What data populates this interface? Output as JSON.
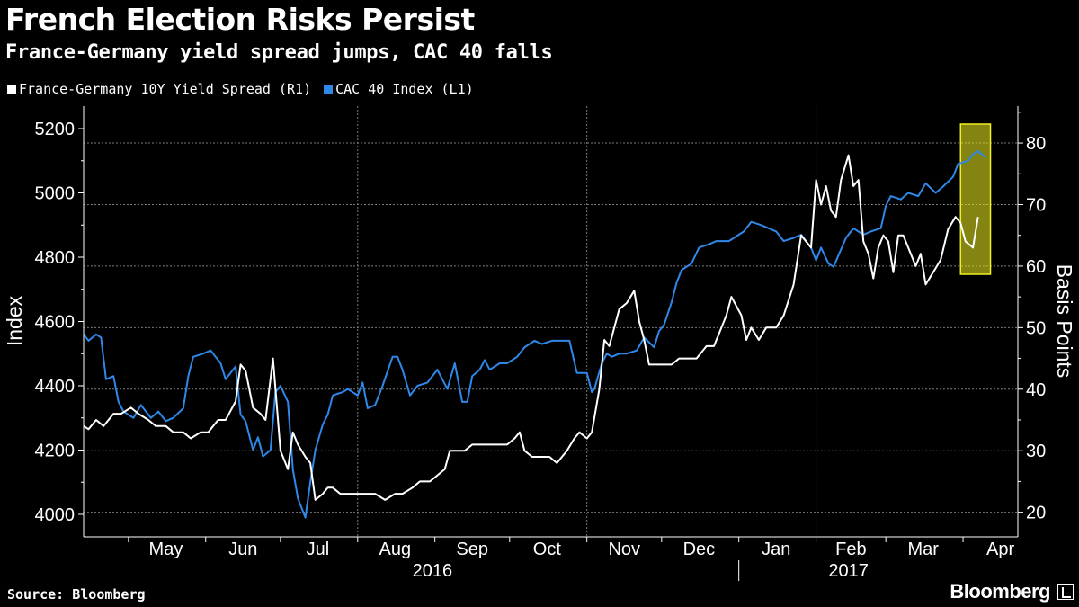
{
  "header": {
    "title": "French Election Risks Persist",
    "subtitle": "France-Germany yield spread jumps, CAC 40 falls"
  },
  "legend": [
    {
      "label": "France-Germany 10Y Yield Spread (R1)",
      "color": "#ffffff"
    },
    {
      "label": "CAC 40 Index (L1)",
      "color": "#2f88e8"
    }
  ],
  "footer": {
    "source": "Source: Bloomberg",
    "brand": "Bloomberg",
    "brand_icon": "bloomberg-terminal-icon"
  },
  "chart_data": {
    "type": "line",
    "left_axis": {
      "label": "Index",
      "ylim": [
        3930,
        5270
      ],
      "ticks": [
        4000,
        4200,
        4400,
        4600,
        4800,
        5000,
        5200
      ]
    },
    "right_axis": {
      "label": "Basis Points",
      "ylim": [
        16,
        86
      ],
      "ticks": [
        20,
        30,
        40,
        50,
        60,
        70,
        80
      ]
    },
    "x_axis": {
      "range": [
        "2016-04-13",
        "2017-04-23"
      ],
      "month_labels": [
        "May",
        "Jun",
        "Jul",
        "Aug",
        "Sep",
        "Oct",
        "Nov",
        "Dec",
        "Jan",
        "Feb",
        "Mar",
        "Apr"
      ],
      "year_labels": [
        "2016",
        "2017"
      ]
    },
    "grid": true,
    "highlight": {
      "from": "2017-03-31",
      "to": "2017-04-12",
      "color": "#f0f020"
    },
    "series": [
      {
        "name": "CAC 40 Index (L1)",
        "axis": "left",
        "color": "#2f88e8",
        "points": [
          [
            "2016-04-13",
            4560
          ],
          [
            "2016-04-15",
            4540
          ],
          [
            "2016-04-18",
            4560
          ],
          [
            "2016-04-20",
            4550
          ],
          [
            "2016-04-22",
            4420
          ],
          [
            "2016-04-25",
            4430
          ],
          [
            "2016-04-27",
            4350
          ],
          [
            "2016-04-29",
            4320
          ],
          [
            "2016-05-03",
            4300
          ],
          [
            "2016-05-06",
            4340
          ],
          [
            "2016-05-10",
            4300
          ],
          [
            "2016-05-13",
            4320
          ],
          [
            "2016-05-16",
            4290
          ],
          [
            "2016-05-19",
            4300
          ],
          [
            "2016-05-23",
            4330
          ],
          [
            "2016-05-25",
            4430
          ],
          [
            "2016-05-27",
            4490
          ],
          [
            "2016-05-31",
            4500
          ],
          [
            "2016-06-03",
            4510
          ],
          [
            "2016-06-07",
            4470
          ],
          [
            "2016-06-09",
            4420
          ],
          [
            "2016-06-13",
            4460
          ],
          [
            "2016-06-15",
            4310
          ],
          [
            "2016-06-17",
            4290
          ],
          [
            "2016-06-20",
            4200
          ],
          [
            "2016-06-22",
            4240
          ],
          [
            "2016-06-24",
            4180
          ],
          [
            "2016-06-27",
            4200
          ],
          [
            "2016-06-29",
            4380
          ],
          [
            "2016-07-01",
            4400
          ],
          [
            "2016-07-04",
            4350
          ],
          [
            "2016-07-06",
            4140
          ],
          [
            "2016-07-08",
            4050
          ],
          [
            "2016-07-11",
            3990
          ],
          [
            "2016-07-13",
            4100
          ],
          [
            "2016-07-15",
            4200
          ],
          [
            "2016-07-18",
            4280
          ],
          [
            "2016-07-20",
            4310
          ],
          [
            "2016-07-22",
            4370
          ],
          [
            "2016-07-26",
            4380
          ],
          [
            "2016-07-28",
            4390
          ],
          [
            "2016-08-01",
            4370
          ],
          [
            "2016-08-03",
            4410
          ],
          [
            "2016-08-05",
            4330
          ],
          [
            "2016-08-08",
            4340
          ],
          [
            "2016-08-11",
            4400
          ],
          [
            "2016-08-15",
            4490
          ],
          [
            "2016-08-17",
            4490
          ],
          [
            "2016-08-19",
            4450
          ],
          [
            "2016-08-22",
            4370
          ],
          [
            "2016-08-25",
            4400
          ],
          [
            "2016-08-29",
            4410
          ],
          [
            "2016-09-02",
            4450
          ],
          [
            "2016-09-06",
            4390
          ],
          [
            "2016-09-09",
            4470
          ],
          [
            "2016-09-12",
            4350
          ],
          [
            "2016-09-14",
            4350
          ],
          [
            "2016-09-16",
            4430
          ],
          [
            "2016-09-19",
            4450
          ],
          [
            "2016-09-21",
            4480
          ],
          [
            "2016-09-23",
            4450
          ],
          [
            "2016-09-27",
            4470
          ],
          [
            "2016-09-30",
            4470
          ],
          [
            "2016-10-04",
            4490
          ],
          [
            "2016-10-07",
            4520
          ],
          [
            "2016-10-11",
            4540
          ],
          [
            "2016-10-14",
            4530
          ],
          [
            "2016-10-18",
            4540
          ],
          [
            "2016-10-21",
            4540
          ],
          [
            "2016-10-25",
            4540
          ],
          [
            "2016-10-28",
            4440
          ],
          [
            "2016-11-01",
            4440
          ],
          [
            "2016-11-03",
            4380
          ],
          [
            "2016-11-04",
            4390
          ],
          [
            "2016-11-07",
            4470
          ],
          [
            "2016-11-09",
            4500
          ],
          [
            "2016-11-11",
            4490
          ],
          [
            "2016-11-14",
            4500
          ],
          [
            "2016-11-17",
            4500
          ],
          [
            "2016-11-21",
            4510
          ],
          [
            "2016-11-24",
            4550
          ],
          [
            "2016-11-28",
            4520
          ],
          [
            "2016-11-30",
            4570
          ],
          [
            "2016-12-02",
            4590
          ],
          [
            "2016-12-05",
            4660
          ],
          [
            "2016-12-07",
            4720
          ],
          [
            "2016-12-09",
            4760
          ],
          [
            "2016-12-13",
            4780
          ],
          [
            "2016-12-16",
            4830
          ],
          [
            "2016-12-20",
            4840
          ],
          [
            "2016-12-23",
            4850
          ],
          [
            "2016-12-28",
            4850
          ],
          [
            "2016-12-30",
            4860
          ],
          [
            "2017-01-03",
            4880
          ],
          [
            "2017-01-06",
            4910
          ],
          [
            "2017-01-10",
            4900
          ],
          [
            "2017-01-13",
            4890
          ],
          [
            "2017-01-16",
            4880
          ],
          [
            "2017-01-19",
            4850
          ],
          [
            "2017-01-23",
            4860
          ],
          [
            "2017-01-26",
            4870
          ],
          [
            "2017-01-30",
            4830
          ],
          [
            "2017-02-01",
            4790
          ],
          [
            "2017-02-03",
            4830
          ],
          [
            "2017-02-06",
            4780
          ],
          [
            "2017-02-08",
            4770
          ],
          [
            "2017-02-13",
            4860
          ],
          [
            "2017-02-16",
            4890
          ],
          [
            "2017-02-20",
            4870
          ],
          [
            "2017-02-23",
            4880
          ],
          [
            "2017-02-27",
            4890
          ],
          [
            "2017-03-01",
            4960
          ],
          [
            "2017-03-03",
            4990
          ],
          [
            "2017-03-07",
            4980
          ],
          [
            "2017-03-10",
            5000
          ],
          [
            "2017-03-14",
            4990
          ],
          [
            "2017-03-17",
            5030
          ],
          [
            "2017-03-21",
            5000
          ],
          [
            "2017-03-24",
            5020
          ],
          [
            "2017-03-28",
            5050
          ],
          [
            "2017-03-30",
            5090
          ],
          [
            "2017-04-03",
            5100
          ],
          [
            "2017-04-05",
            5120
          ],
          [
            "2017-04-07",
            5130
          ],
          [
            "2017-04-10",
            5110
          ]
        ]
      },
      {
        "name": "France-Germany 10Y Yield Spread (R1)",
        "axis": "right",
        "color": "#ffffff",
        "points": [
          [
            "2016-04-13",
            34
          ],
          [
            "2016-04-15",
            33.5
          ],
          [
            "2016-04-18",
            35
          ],
          [
            "2016-04-21",
            34
          ],
          [
            "2016-04-25",
            36
          ],
          [
            "2016-04-28",
            36
          ],
          [
            "2016-05-02",
            37
          ],
          [
            "2016-05-05",
            36
          ],
          [
            "2016-05-09",
            35
          ],
          [
            "2016-05-12",
            34
          ],
          [
            "2016-05-16",
            34
          ],
          [
            "2016-05-19",
            33
          ],
          [
            "2016-05-23",
            33
          ],
          [
            "2016-05-26",
            32
          ],
          [
            "2016-05-30",
            33
          ],
          [
            "2016-06-02",
            33
          ],
          [
            "2016-06-06",
            35
          ],
          [
            "2016-06-09",
            35
          ],
          [
            "2016-06-13",
            38
          ],
          [
            "2016-06-15",
            44
          ],
          [
            "2016-06-17",
            43
          ],
          [
            "2016-06-20",
            37
          ],
          [
            "2016-06-23",
            36
          ],
          [
            "2016-06-25",
            35
          ],
          [
            "2016-06-28",
            45
          ],
          [
            "2016-07-01",
            30
          ],
          [
            "2016-07-04",
            27
          ],
          [
            "2016-07-06",
            33
          ],
          [
            "2016-07-08",
            31
          ],
          [
            "2016-07-11",
            29
          ],
          [
            "2016-07-13",
            28
          ],
          [
            "2016-07-15",
            22
          ],
          [
            "2016-07-18",
            23
          ],
          [
            "2016-07-20",
            24
          ],
          [
            "2016-07-22",
            24
          ],
          [
            "2016-07-25",
            23
          ],
          [
            "2016-07-29",
            23
          ],
          [
            "2016-08-03",
            23
          ],
          [
            "2016-08-08",
            23
          ],
          [
            "2016-08-12",
            22
          ],
          [
            "2016-08-16",
            23
          ],
          [
            "2016-08-19",
            23
          ],
          [
            "2016-08-23",
            24
          ],
          [
            "2016-08-26",
            25
          ],
          [
            "2016-08-30",
            25
          ],
          [
            "2016-09-02",
            26
          ],
          [
            "2016-09-05",
            27
          ],
          [
            "2016-09-07",
            30
          ],
          [
            "2016-09-09",
            30
          ],
          [
            "2016-09-13",
            30
          ],
          [
            "2016-09-16",
            31
          ],
          [
            "2016-09-20",
            31
          ],
          [
            "2016-09-23",
            31
          ],
          [
            "2016-09-27",
            31
          ],
          [
            "2016-09-30",
            31
          ],
          [
            "2016-10-03",
            32
          ],
          [
            "2016-10-05",
            33
          ],
          [
            "2016-10-07",
            30
          ],
          [
            "2016-10-10",
            29
          ],
          [
            "2016-10-13",
            29
          ],
          [
            "2016-10-17",
            29
          ],
          [
            "2016-10-20",
            28
          ],
          [
            "2016-10-24",
            30
          ],
          [
            "2016-10-27",
            32
          ],
          [
            "2016-10-29",
            33
          ],
          [
            "2016-11-01",
            32
          ],
          [
            "2016-11-03",
            33
          ],
          [
            "2016-11-06",
            40
          ],
          [
            "2016-11-08",
            48
          ],
          [
            "2016-11-10",
            47
          ],
          [
            "2016-11-14",
            53
          ],
          [
            "2016-11-17",
            54
          ],
          [
            "2016-11-20",
            56
          ],
          [
            "2016-11-22",
            51
          ],
          [
            "2016-11-24",
            48
          ],
          [
            "2016-11-26",
            44
          ],
          [
            "2016-11-28",
            44
          ],
          [
            "2016-12-01",
            44
          ],
          [
            "2016-12-05",
            44
          ],
          [
            "2016-12-08",
            45
          ],
          [
            "2016-12-12",
            45
          ],
          [
            "2016-12-15",
            45
          ],
          [
            "2016-12-19",
            47
          ],
          [
            "2016-12-22",
            47
          ],
          [
            "2016-12-27",
            52
          ],
          [
            "2016-12-29",
            55
          ],
          [
            "2017-01-02",
            52
          ],
          [
            "2017-01-04",
            48
          ],
          [
            "2017-01-06",
            50
          ],
          [
            "2017-01-09",
            48
          ],
          [
            "2017-01-12",
            50
          ],
          [
            "2017-01-16",
            50
          ],
          [
            "2017-01-19",
            52
          ],
          [
            "2017-01-23",
            57
          ],
          [
            "2017-01-26",
            65
          ],
          [
            "2017-01-30",
            63
          ],
          [
            "2017-02-01",
            74
          ],
          [
            "2017-02-03",
            70
          ],
          [
            "2017-02-05",
            73
          ],
          [
            "2017-02-07",
            69
          ],
          [
            "2017-02-09",
            68
          ],
          [
            "2017-02-11",
            74
          ],
          [
            "2017-02-14",
            78
          ],
          [
            "2017-02-16",
            73
          ],
          [
            "2017-02-18",
            74
          ],
          [
            "2017-02-20",
            64
          ],
          [
            "2017-02-22",
            62
          ],
          [
            "2017-02-24",
            58
          ],
          [
            "2017-02-26",
            63
          ],
          [
            "2017-02-28",
            65
          ],
          [
            "2017-03-02",
            64
          ],
          [
            "2017-03-04",
            59
          ],
          [
            "2017-03-06",
            65
          ],
          [
            "2017-03-08",
            65
          ],
          [
            "2017-03-10",
            63
          ],
          [
            "2017-03-13",
            60
          ],
          [
            "2017-03-15",
            62
          ],
          [
            "2017-03-17",
            57
          ],
          [
            "2017-03-20",
            59
          ],
          [
            "2017-03-23",
            61
          ],
          [
            "2017-03-26",
            66
          ],
          [
            "2017-03-29",
            68
          ],
          [
            "2017-03-31",
            67
          ],
          [
            "2017-04-02",
            64
          ],
          [
            "2017-04-05",
            63
          ],
          [
            "2017-04-07",
            68
          ]
        ]
      }
    ]
  }
}
